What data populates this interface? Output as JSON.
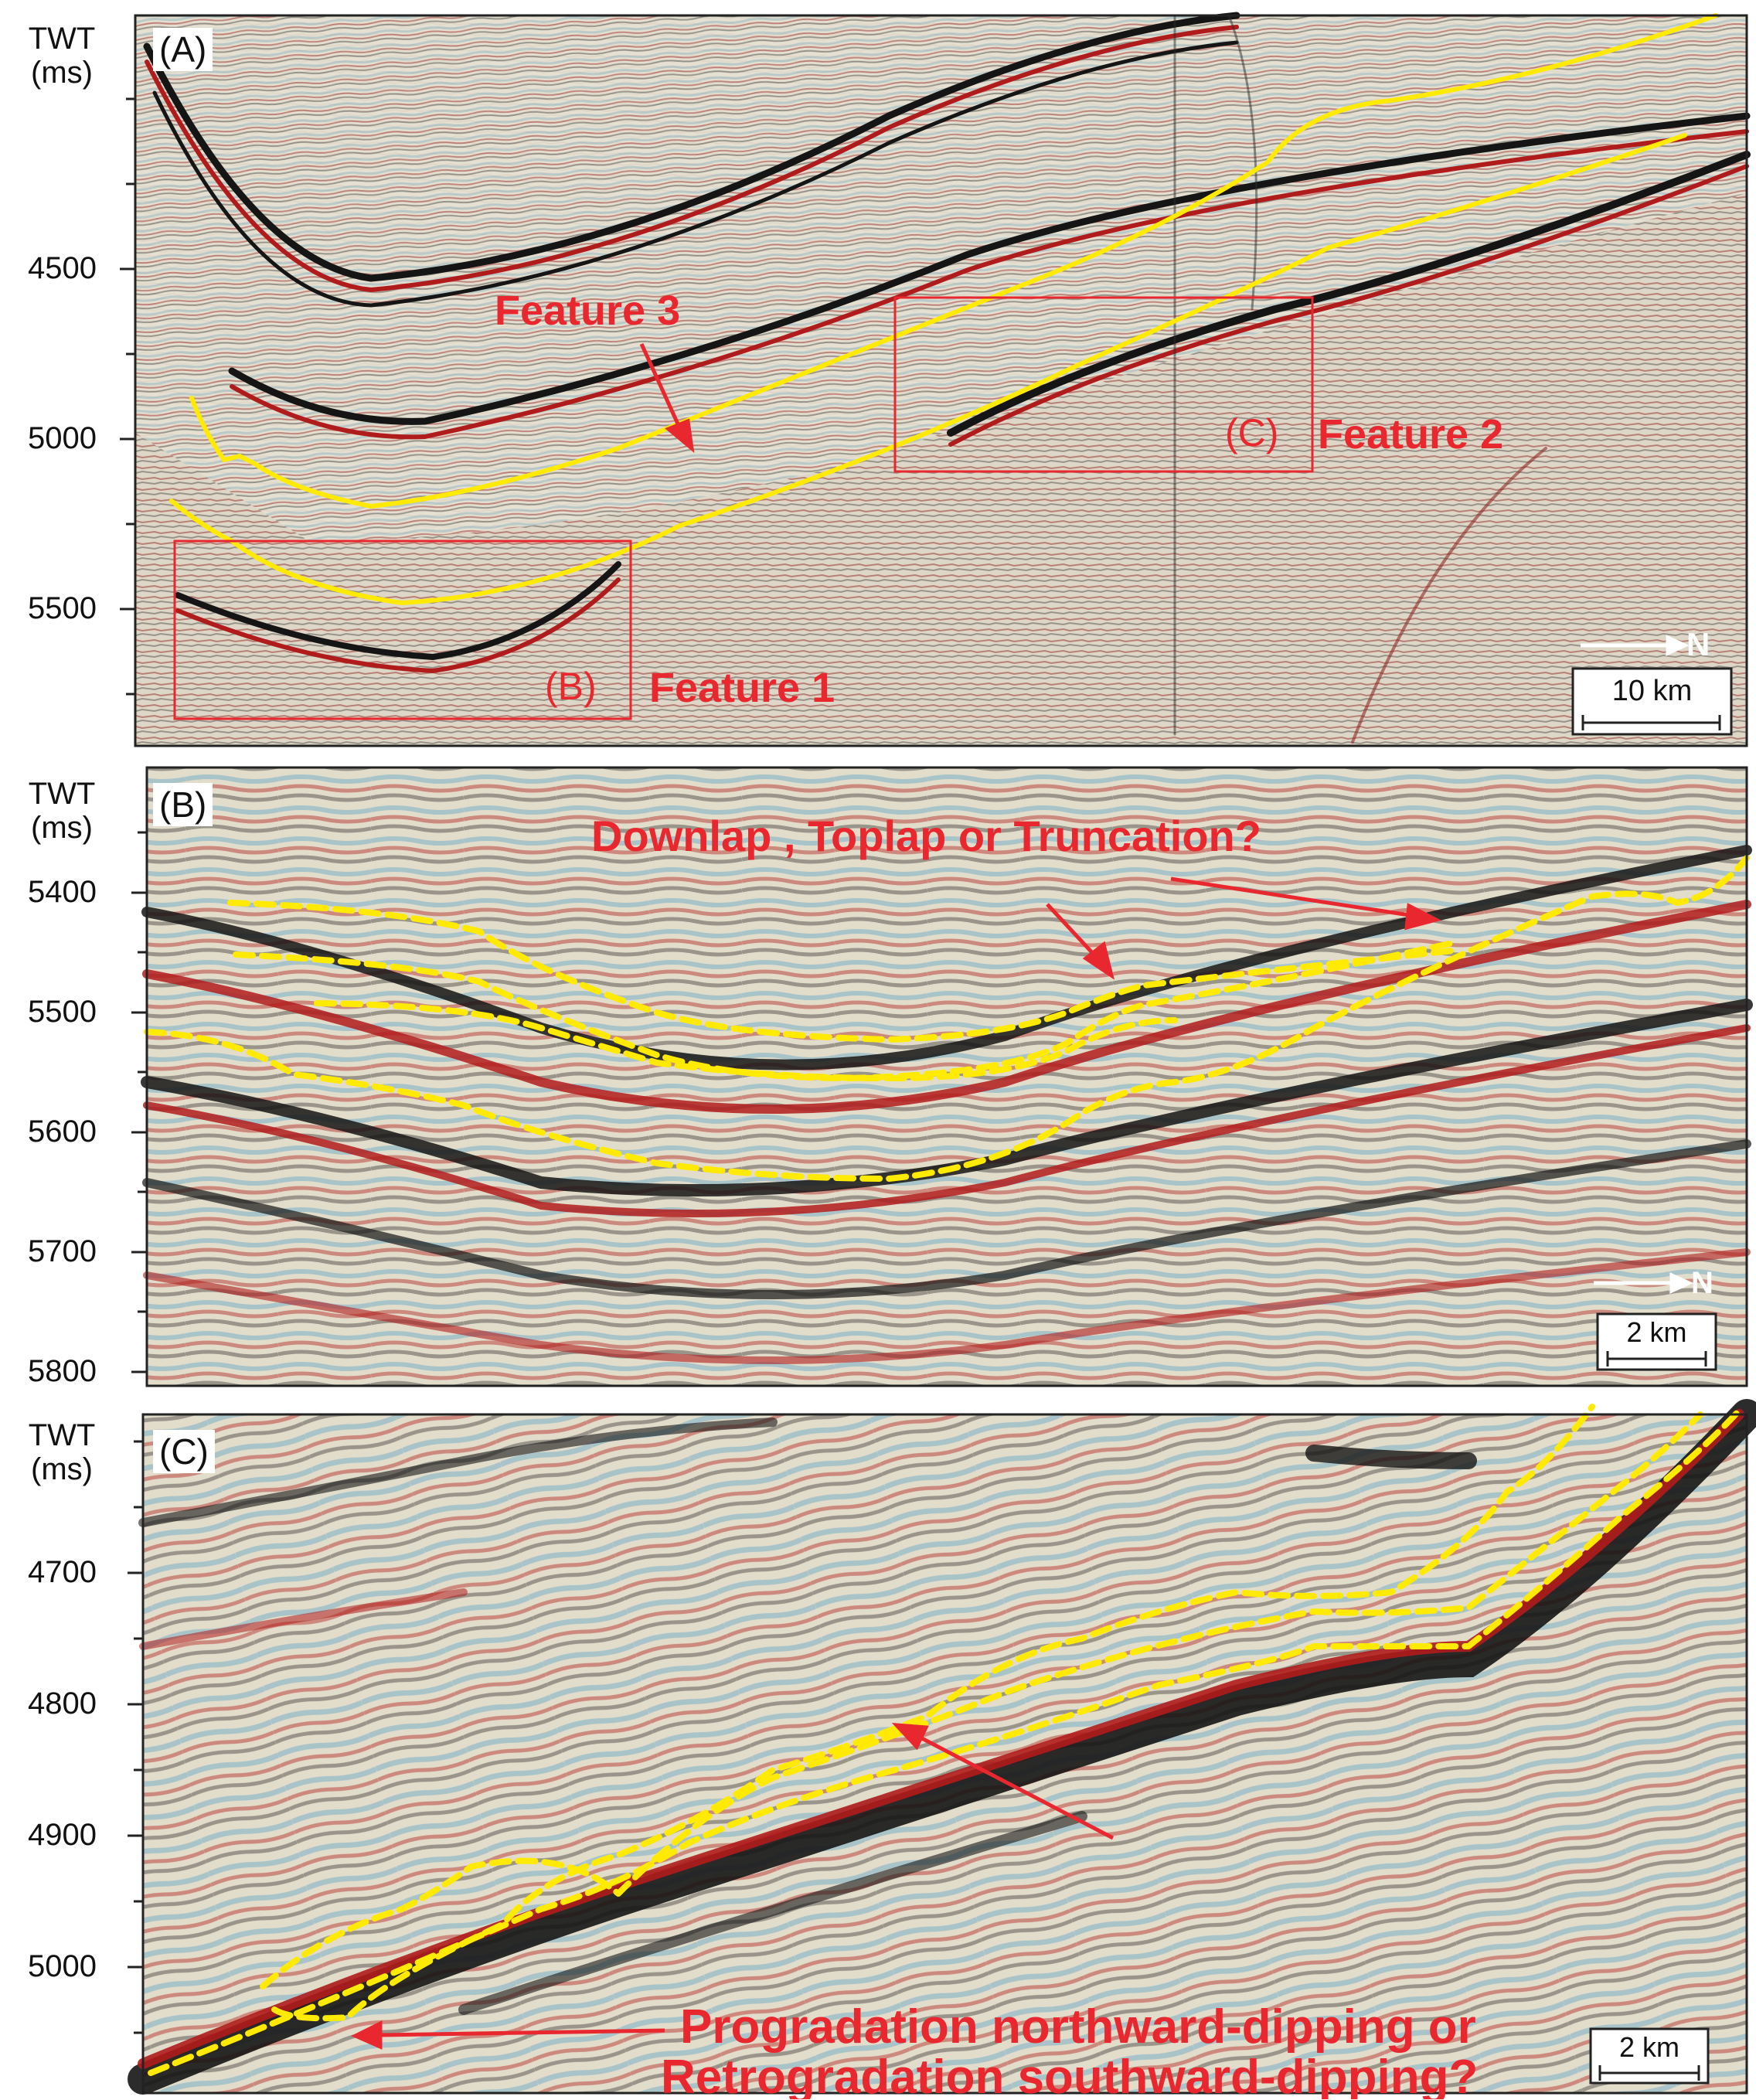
{
  "panels": [
    {
      "id": "A",
      "label": "(A)",
      "axis_title": [
        "TWT",
        "(ms)"
      ],
      "ticks": [
        "4500",
        "5000",
        "5500"
      ],
      "scale_label": "10 km",
      "north_label": "N",
      "annotations": {
        "feature1_box": "(B)",
        "feature1": "Feature 1",
        "feature2_box": "(C)",
        "feature2": "Feature 2",
        "feature3": "Feature 3"
      }
    },
    {
      "id": "B",
      "label": "(B)",
      "axis_title": [
        "TWT",
        "(ms)"
      ],
      "ticks": [
        "5400",
        "5500",
        "5600",
        "5700",
        "5800"
      ],
      "scale_label": "2 km",
      "north_label": "N",
      "annotations": {
        "question": "Downlap , Toplap or Truncation?"
      }
    },
    {
      "id": "C",
      "label": "(C)",
      "axis_title": [
        "TWT",
        "(ms)"
      ],
      "ticks": [
        "4700",
        "4800",
        "4900",
        "5000"
      ],
      "scale_label": "2 km",
      "annotations": {
        "question_line1": "Progradation northward-dipping or",
        "question_line2": "Retrogradation southward-dipping?"
      }
    }
  ],
  "colors": {
    "horizon": "#ffea00",
    "annotation": "#e8272f",
    "frame": "#222222",
    "seismic_red": "#b01c1c",
    "seismic_black": "#151515",
    "seismic_bg": "#e6e1d2"
  }
}
